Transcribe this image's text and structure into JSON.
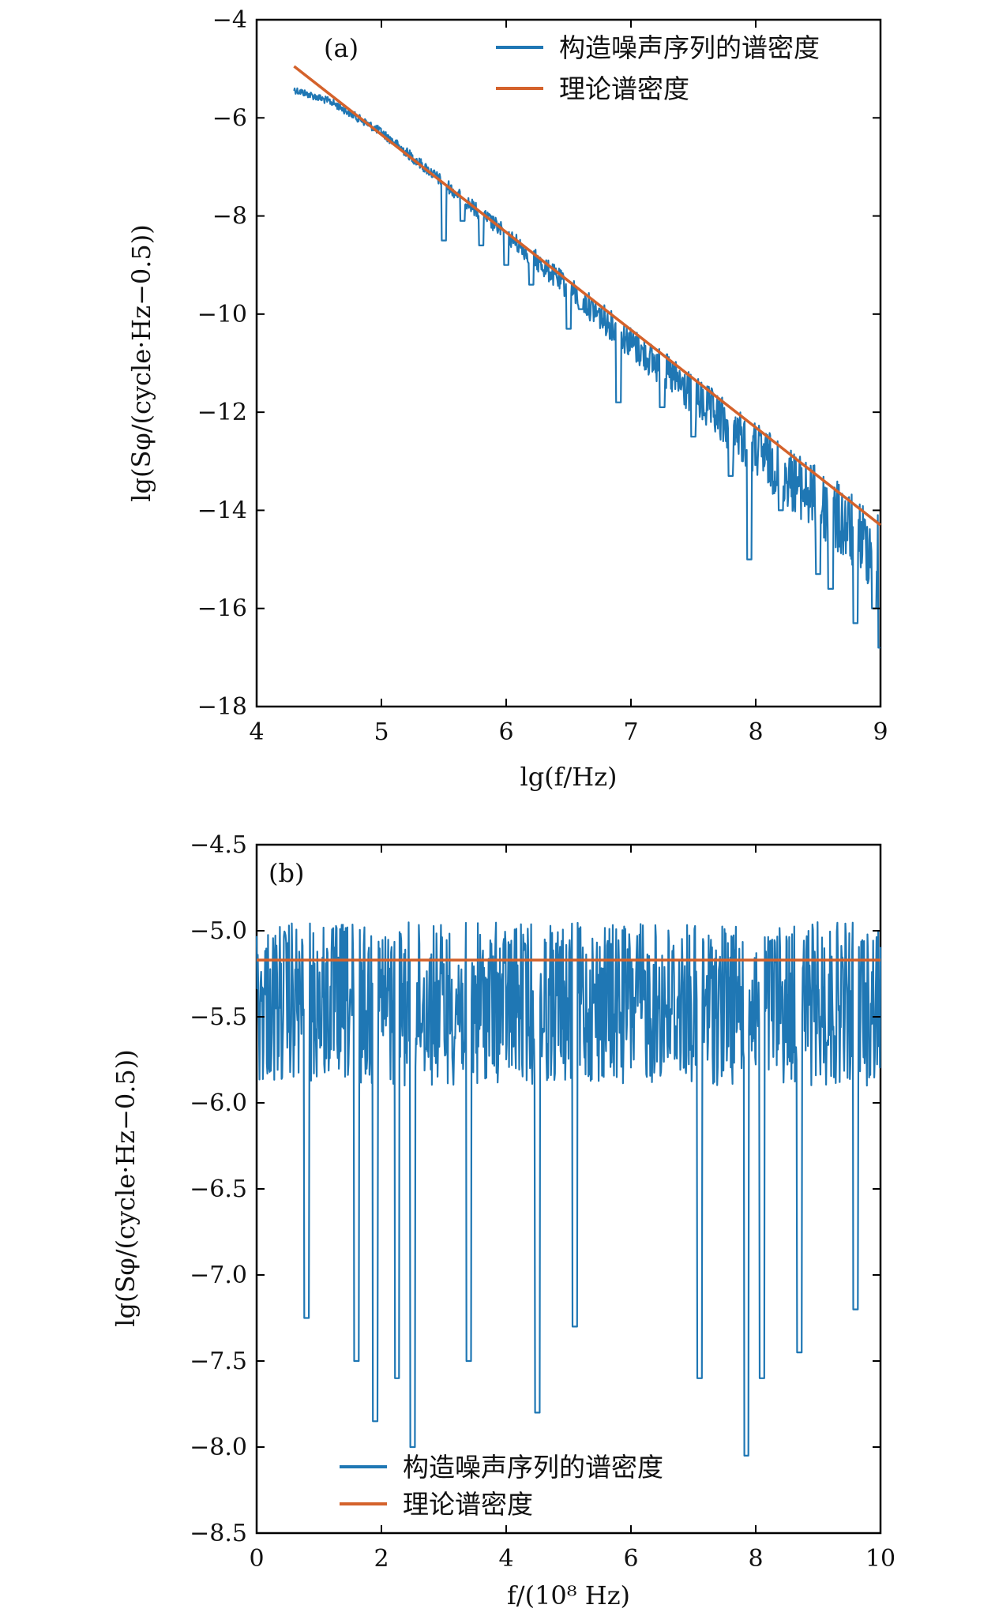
{
  "chart_data": [
    {
      "type": "line",
      "panel_label": "(a)",
      "xlabel": "lg(f/Hz)",
      "ylabel": "lg(Sφ/(cycle·Hz−0.5))",
      "xlim": [
        4,
        9
      ],
      "ylim": [
        -18,
        -4
      ],
      "x_ticks": [
        "4",
        "5",
        "6",
        "7",
        "8",
        "9"
      ],
      "y_ticks": [
        "−4",
        "−6",
        "−8",
        "−10",
        "−12",
        "−14",
        "−16",
        "−18"
      ],
      "x_tick_values": [
        4,
        5,
        6,
        7,
        8,
        9
      ],
      "y_tick_values": [
        -4,
        -6,
        -8,
        -10,
        -12,
        -14,
        -16,
        -18
      ],
      "legend_position": "top-right",
      "series": [
        {
          "name": "构造噪声序列的谱密度",
          "color": "#1f77b4",
          "upper_envelope": {
            "x": [
              4.3,
              4.6,
              5.0,
              5.2,
              5.5,
              6.0,
              7.0,
              8.0,
              9.0
            ],
            "y": [
              -5.35,
              -5.6,
              -6.2,
              -6.6,
              -7.2,
              -8.2,
              -10.25,
              -12.2,
              -14.05
            ]
          },
          "dips": [
            {
              "x": 5.5,
              "y": -8.5
            },
            {
              "x": 5.65,
              "y": -8.1
            },
            {
              "x": 5.8,
              "y": -8.6
            },
            {
              "x": 6.0,
              "y": -9.0
            },
            {
              "x": 6.2,
              "y": -9.4
            },
            {
              "x": 6.5,
              "y": -10.3
            },
            {
              "x": 6.6,
              "y": -9.9
            },
            {
              "x": 6.9,
              "y": -11.8
            },
            {
              "x": 7.25,
              "y": -11.9
            },
            {
              "x": 7.5,
              "y": -12.5
            },
            {
              "x": 7.8,
              "y": -13.3
            },
            {
              "x": 7.95,
              "y": -15.0
            },
            {
              "x": 8.2,
              "y": -14.0
            },
            {
              "x": 8.5,
              "y": -15.3
            },
            {
              "x": 8.6,
              "y": -15.6
            },
            {
              "x": 8.8,
              "y": -16.3
            },
            {
              "x": 8.95,
              "y": -16.0
            },
            {
              "x": 9.0,
              "y": -16.8
            }
          ]
        },
        {
          "name": "理论谱密度",
          "color": "#d4622b",
          "x": [
            4.3,
            9.0
          ],
          "y": [
            -4.95,
            -14.3
          ]
        }
      ]
    },
    {
      "type": "line",
      "panel_label": "(b)",
      "xlabel": "f/(10⁸ Hz)",
      "ylabel": "lg(Sφ/(cycle·Hz−0.5))",
      "xlim": [
        0,
        10
      ],
      "ylim": [
        -8.5,
        -4.5
      ],
      "x_ticks": [
        "0",
        "2",
        "4",
        "6",
        "8",
        "10"
      ],
      "y_ticks": [
        "−4.5",
        "−5.0",
        "−5.5",
        "−6.0",
        "−6.5",
        "−7.0",
        "−7.5",
        "−8.0",
        "−8.5"
      ],
      "x_tick_values": [
        0,
        2,
        4,
        6,
        8,
        10
      ],
      "y_tick_values": [
        -4.5,
        -5.0,
        -5.5,
        -6.0,
        -6.5,
        -7.0,
        -7.5,
        -8.0,
        -8.5
      ],
      "legend_position": "bottom-center",
      "series": [
        {
          "name": "构造噪声序列的谱密度",
          "color": "#1f77b4",
          "upper_envelope": {
            "x": [
              0,
              10
            ],
            "y": [
              -4.95,
              -4.95
            ]
          },
          "band_floor": -5.9,
          "dips": [
            {
              "x": 0.8,
              "y": -7.25
            },
            {
              "x": 1.6,
              "y": -7.5
            },
            {
              "x": 1.9,
              "y": -7.85
            },
            {
              "x": 2.25,
              "y": -7.6
            },
            {
              "x": 2.5,
              "y": -8.0
            },
            {
              "x": 3.4,
              "y": -7.5
            },
            {
              "x": 4.5,
              "y": -7.8
            },
            {
              "x": 5.1,
              "y": -7.3
            },
            {
              "x": 7.1,
              "y": -7.6
            },
            {
              "x": 7.85,
              "y": -8.05
            },
            {
              "x": 8.1,
              "y": -7.6
            },
            {
              "x": 8.7,
              "y": -7.45
            },
            {
              "x": 9.6,
              "y": -7.2
            }
          ]
        },
        {
          "name": "理论谱密度",
          "color": "#d4622b",
          "x": [
            0,
            10
          ],
          "y": [
            -5.17,
            -5.17
          ]
        }
      ]
    }
  ]
}
